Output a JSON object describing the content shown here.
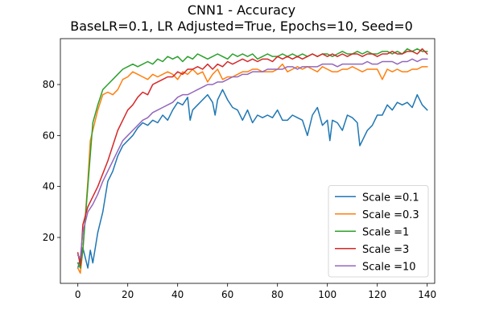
{
  "chart_data": {
    "type": "line",
    "title": "CNN1 - Accuracy",
    "subtitle": "BaseLR=0.1, LR Adjusted=True, Epochs=10, Seed=0",
    "xlabel": "",
    "ylabel": "",
    "xlim": [
      -7,
      143
    ],
    "ylim": [
      2,
      98
    ],
    "xticks": [
      0,
      20,
      40,
      60,
      80,
      100,
      120,
      140
    ],
    "yticks": [
      20,
      40,
      60,
      80
    ],
    "legend_position": "lower-right",
    "series": [
      {
        "name": "Scale =0.1",
        "color": "#1f77b4",
        "x": [
          0,
          2,
          4,
          5,
          6,
          8,
          10,
          12,
          14,
          16,
          18,
          20,
          22,
          24,
          26,
          28,
          30,
          32,
          34,
          36,
          38,
          40,
          42,
          44,
          45,
          46,
          48,
          50,
          52,
          54,
          55,
          56,
          58,
          60,
          62,
          64,
          66,
          68,
          70,
          72,
          74,
          76,
          78,
          80,
          82,
          84,
          86,
          88,
          90,
          92,
          94,
          96,
          98,
          100,
          101,
          102,
          104,
          106,
          108,
          110,
          112,
          113,
          114,
          116,
          118,
          120,
          122,
          124,
          126,
          128,
          130,
          132,
          134,
          136,
          138,
          140
        ],
        "values": [
          8,
          16,
          8,
          15,
          10,
          22,
          30,
          42,
          46,
          52,
          56,
          58,
          60,
          63,
          65,
          64,
          66,
          65,
          68,
          66,
          70,
          73,
          72,
          75,
          66,
          70,
          72,
          74,
          76,
          73,
          68,
          74,
          78,
          74,
          71,
          70,
          66,
          70,
          65,
          68,
          67,
          68,
          67,
          70,
          66,
          66,
          68,
          67,
          66,
          60,
          68,
          71,
          64,
          66,
          58,
          66,
          65,
          62,
          68,
          67,
          65,
          56,
          58,
          62,
          64,
          68,
          68,
          72,
          70,
          73,
          72,
          73,
          71,
          76,
          72,
          70
        ]
      },
      {
        "name": "Scale =0.3",
        "color": "#ff7f0e",
        "x": [
          0,
          1,
          2,
          4,
          5,
          6,
          8,
          10,
          12,
          14,
          16,
          18,
          20,
          22,
          24,
          26,
          28,
          30,
          32,
          34,
          36,
          38,
          40,
          42,
          44,
          46,
          48,
          50,
          52,
          54,
          56,
          58,
          60,
          62,
          64,
          66,
          68,
          70,
          72,
          74,
          76,
          78,
          80,
          82,
          84,
          86,
          88,
          90,
          92,
          94,
          96,
          98,
          100,
          102,
          104,
          106,
          108,
          110,
          112,
          114,
          116,
          118,
          120,
          122,
          124,
          126,
          128,
          130,
          132,
          134,
          136,
          138,
          140
        ],
        "values": [
          8,
          6,
          15,
          42,
          58,
          62,
          70,
          76,
          77,
          76,
          78,
          82,
          83,
          85,
          84,
          83,
          82,
          84,
          83,
          84,
          85,
          84,
          82,
          85,
          84,
          86,
          84,
          85,
          81,
          84,
          86,
          82,
          83,
          83,
          84,
          85,
          85,
          86,
          86,
          85,
          85,
          85,
          86,
          88,
          85,
          86,
          87,
          86,
          87,
          86,
          85,
          87,
          86,
          85,
          85,
          86,
          86,
          87,
          86,
          85,
          86,
          86,
          86,
          82,
          86,
          85,
          86,
          85,
          85,
          86,
          86,
          87,
          87
        ]
      },
      {
        "name": "Scale =1",
        "color": "#2ca02c",
        "x": [
          0,
          1,
          2,
          4,
          6,
          8,
          10,
          12,
          14,
          16,
          18,
          20,
          22,
          24,
          26,
          28,
          30,
          32,
          34,
          36,
          38,
          40,
          42,
          44,
          46,
          48,
          50,
          52,
          54,
          56,
          58,
          60,
          62,
          64,
          66,
          68,
          70,
          72,
          74,
          76,
          78,
          80,
          82,
          84,
          86,
          88,
          90,
          92,
          94,
          96,
          98,
          100,
          102,
          104,
          106,
          108,
          110,
          112,
          114,
          116,
          118,
          120,
          122,
          124,
          126,
          128,
          130,
          132,
          134,
          136,
          138,
          140
        ],
        "values": [
          10,
          8,
          15,
          40,
          65,
          72,
          78,
          80,
          82,
          84,
          86,
          87,
          88,
          87,
          88,
          89,
          88,
          90,
          89,
          91,
          90,
          91,
          89,
          91,
          90,
          92,
          91,
          90,
          91,
          92,
          91,
          90,
          92,
          91,
          92,
          91,
          92,
          90,
          91,
          92,
          91,
          91,
          92,
          91,
          92,
          91,
          92,
          91,
          92,
          91,
          92,
          92,
          91,
          92,
          93,
          92,
          92,
          93,
          92,
          93,
          92,
          92,
          93,
          93,
          92,
          93,
          92,
          94,
          93,
          94,
          93,
          93
        ]
      },
      {
        "name": "Scale =3",
        "color": "#d62728",
        "x": [
          0,
          1,
          2,
          4,
          6,
          8,
          10,
          12,
          14,
          16,
          18,
          20,
          22,
          24,
          26,
          28,
          30,
          32,
          34,
          36,
          38,
          40,
          42,
          44,
          46,
          48,
          50,
          52,
          54,
          56,
          58,
          60,
          62,
          64,
          66,
          68,
          70,
          72,
          74,
          76,
          78,
          80,
          82,
          84,
          86,
          88,
          90,
          92,
          94,
          96,
          98,
          100,
          102,
          104,
          106,
          108,
          110,
          112,
          114,
          116,
          118,
          120,
          122,
          124,
          126,
          128,
          130,
          132,
          134,
          136,
          138,
          140
        ],
        "values": [
          14,
          9,
          25,
          32,
          36,
          40,
          45,
          50,
          56,
          62,
          66,
          70,
          72,
          75,
          77,
          76,
          80,
          81,
          82,
          83,
          83,
          85,
          84,
          86,
          86,
          87,
          86,
          88,
          86,
          88,
          87,
          89,
          88,
          89,
          90,
          89,
          90,
          89,
          90,
          90,
          89,
          91,
          90,
          91,
          90,
          91,
          90,
          91,
          92,
          91,
          92,
          91,
          92,
          91,
          92,
          91,
          92,
          92,
          91,
          92,
          92,
          91,
          92,
          92,
          93,
          92,
          92,
          93,
          93,
          92,
          94,
          92
        ]
      },
      {
        "name": "Scale =10",
        "color": "#9467bd",
        "x": [
          0,
          1,
          2,
          4,
          6,
          8,
          10,
          12,
          14,
          16,
          18,
          20,
          22,
          24,
          26,
          28,
          30,
          32,
          34,
          36,
          38,
          40,
          42,
          44,
          46,
          48,
          50,
          52,
          54,
          56,
          58,
          60,
          62,
          64,
          66,
          68,
          70,
          72,
          74,
          76,
          78,
          80,
          82,
          84,
          86,
          88,
          90,
          92,
          94,
          96,
          98,
          100,
          102,
          104,
          106,
          108,
          110,
          112,
          114,
          116,
          118,
          120,
          122,
          124,
          126,
          128,
          130,
          132,
          134,
          136,
          138,
          140
        ],
        "values": [
          13,
          12,
          22,
          30,
          33,
          37,
          42,
          46,
          50,
          54,
          58,
          60,
          62,
          64,
          66,
          67,
          69,
          70,
          71,
          72,
          73,
          75,
          76,
          76,
          77,
          78,
          79,
          80,
          80,
          81,
          81,
          82,
          83,
          83,
          84,
          84,
          85,
          85,
          85,
          86,
          86,
          86,
          86,
          87,
          87,
          86,
          87,
          87,
          87,
          87,
          88,
          88,
          88,
          87,
          88,
          88,
          88,
          88,
          88,
          89,
          88,
          88,
          89,
          89,
          89,
          88,
          89,
          89,
          90,
          89,
          90,
          90
        ]
      }
    ]
  }
}
